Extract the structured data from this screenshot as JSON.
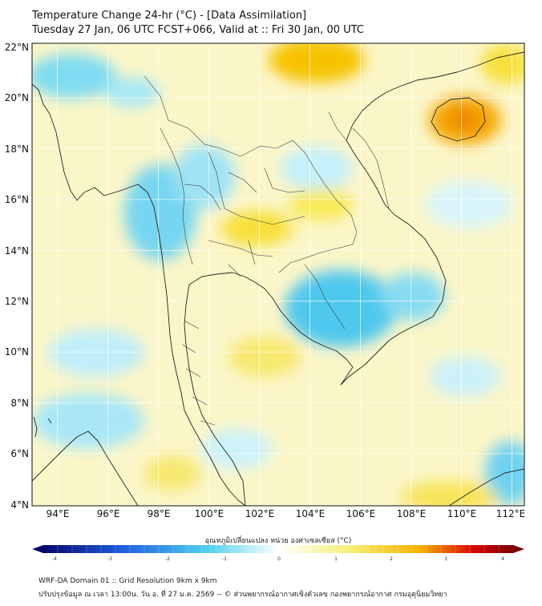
{
  "title": {
    "line1": "Temperature Change 24-hr (°C) - [Data Assimilation]",
    "line2": "Tuesday 27 Jan, 06 UTC FCST+066, Valid at :: Fri 30 Jan, 00 UTC"
  },
  "map": {
    "lat_labels": [
      "22°N",
      "20°N",
      "18°N",
      "16°N",
      "14°N",
      "12°N",
      "10°N",
      "8°N",
      "6°N",
      "4°N"
    ],
    "lon_labels": [
      "94°E",
      "96°E",
      "98°E",
      "100°E",
      "102°E",
      "104°E",
      "106°E",
      "108°E",
      "110°E",
      "112°E"
    ],
    "lat_range": [
      4,
      22.2
    ],
    "lon_range": [
      93.1,
      112.6
    ]
  },
  "colorbar": {
    "title": "อุณหภูมิเปลี่ยนแปลง หน่วย องศาเซลเซียส (°C)",
    "range": [
      -4,
      4
    ],
    "ticks": [
      "-4",
      "-3",
      "-2",
      "-1",
      "0",
      "1",
      "2",
      "3",
      "4"
    ],
    "colors": {
      "neg_dark": "#06066e",
      "neg_mid": "#1f5fe0",
      "neg_light": "#4fd2ee",
      "zero": "#ffffff",
      "pos_light": "#f7f07a",
      "pos_mid": "#f7b400",
      "pos_dark": "#d80000",
      "pos_max": "#7a0000"
    }
  },
  "footer": {
    "line1": "WRF-DA Domain 01 :: Grid Resolution 9km x 9km",
    "line2": "ปรับปรุงข้อมูล ณ เวลา 13:00น. วัน อ. ที่ 27 ม.ค. 2569 -- © ส่วนพยากรณ์อากาศเชิงตัวเลข กองพยากรณ์อากาศ กรมอุตุนิยมวิทยา"
  }
}
